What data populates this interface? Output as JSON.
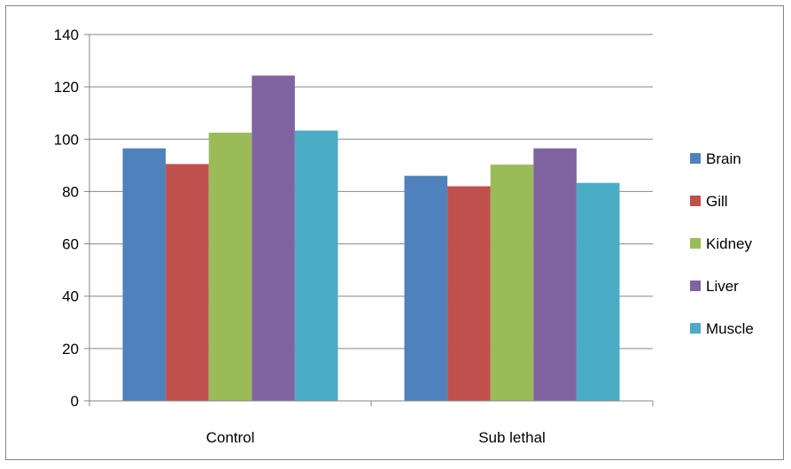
{
  "chart_data": {
    "type": "bar",
    "categories": [
      "Control",
      "Sub lethal"
    ],
    "series": [
      {
        "name": "Brain",
        "values": [
          96.5,
          86
        ],
        "color": "#4F81BD"
      },
      {
        "name": "Gill",
        "values": [
          90.5,
          82
        ],
        "color": "#C0504D"
      },
      {
        "name": "Kidney",
        "values": [
          102.5,
          90.3
        ],
        "color": "#9BBB59"
      },
      {
        "name": "Liver",
        "values": [
          124.3,
          96.5
        ],
        "color": "#8064A2"
      },
      {
        "name": "Muscle",
        "values": [
          103.3,
          83.3
        ],
        "color": "#4BACC6"
      }
    ],
    "ylim": [
      0,
      140
    ],
    "yticks": [
      "0",
      "20",
      "40",
      "60",
      "80",
      "100",
      "120",
      "140"
    ],
    "grid": true,
    "legend_position": "right"
  }
}
